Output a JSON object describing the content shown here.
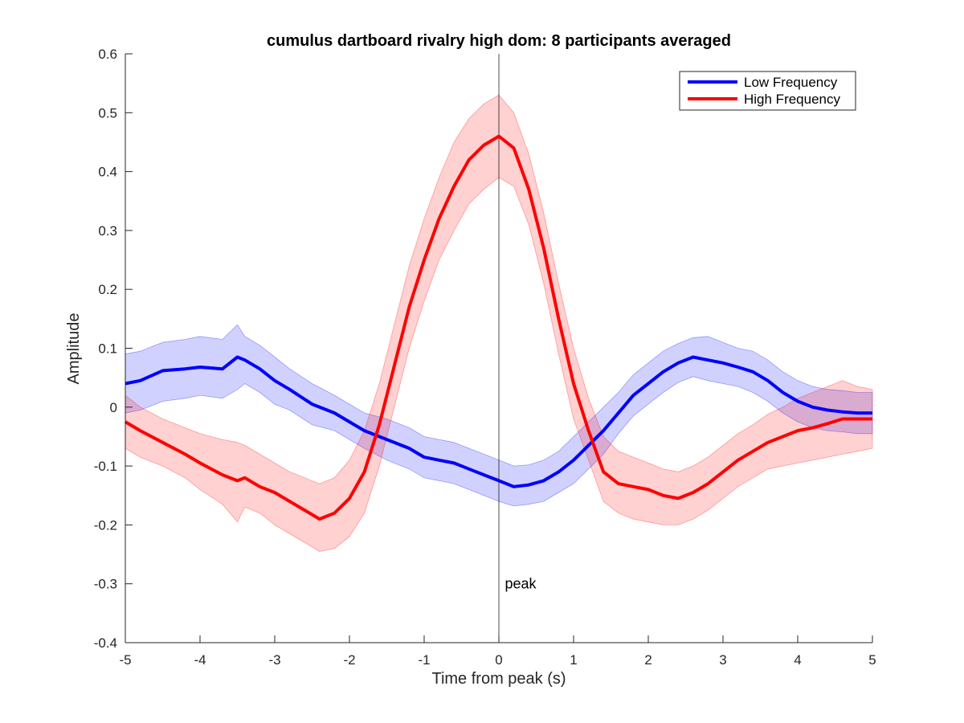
{
  "chart_data": {
    "type": "line",
    "title": "cumulus dartboard rivalry high dom: 8 participants averaged",
    "xlabel": "Time from peak (s)",
    "ylabel": "Amplitude",
    "xlim": [
      -5,
      5
    ],
    "ylim": [
      -0.4,
      0.6
    ],
    "xticks": [
      -5,
      -4,
      -3,
      -2,
      -1,
      0,
      1,
      2,
      3,
      4,
      5
    ],
    "yticks": [
      -0.4,
      -0.3,
      -0.2,
      -0.1,
      0,
      0.1,
      0.2,
      0.3,
      0.4,
      0.5,
      0.6
    ],
    "xtick_labels": [
      "-5",
      "-4",
      "-3",
      "-2",
      "-1",
      "0",
      "1",
      "2",
      "3",
      "4",
      "5"
    ],
    "ytick_labels": [
      "-0.4",
      "-0.3",
      "-0.2",
      "-0.1",
      "0",
      "0.1",
      "0.2",
      "0.3",
      "0.4",
      "0.5",
      "0.6"
    ],
    "grid": false,
    "legend_position": "top-right",
    "annotations": [
      {
        "text": "peak",
        "x": 0.08,
        "y": -0.3
      }
    ],
    "vline_x": 0,
    "series": [
      {
        "name": "Low Frequency",
        "color": "#0000ff",
        "band_color": "#0000ff",
        "x": [
          -5,
          -4.8,
          -4.5,
          -4.2,
          -4.0,
          -3.7,
          -3.5,
          -3.4,
          -3.2,
          -3.0,
          -2.8,
          -2.5,
          -2.2,
          -2.0,
          -1.8,
          -1.5,
          -1.2,
          -1.0,
          -0.8,
          -0.6,
          -0.4,
          -0.2,
          0,
          0.2,
          0.4,
          0.6,
          0.8,
          1.0,
          1.2,
          1.4,
          1.6,
          1.8,
          2.0,
          2.2,
          2.4,
          2.6,
          2.8,
          3.0,
          3.2,
          3.4,
          3.6,
          3.8,
          4.0,
          4.2,
          4.4,
          4.6,
          4.8,
          5.0
        ],
        "values": [
          0.04,
          0.045,
          0.062,
          0.065,
          0.068,
          0.065,
          0.085,
          0.08,
          0.065,
          0.045,
          0.03,
          0.005,
          -0.01,
          -0.025,
          -0.04,
          -0.055,
          -0.07,
          -0.085,
          -0.09,
          -0.095,
          -0.105,
          -0.115,
          -0.125,
          -0.135,
          -0.132,
          -0.125,
          -0.11,
          -0.09,
          -0.065,
          -0.04,
          -0.01,
          0.02,
          0.04,
          0.06,
          0.075,
          0.085,
          0.08,
          0.075,
          0.068,
          0.06,
          0.045,
          0.025,
          0.01,
          0.0,
          -0.005,
          -0.008,
          -0.01,
          -0.01
        ],
        "upper": [
          0.09,
          0.095,
          0.11,
          0.115,
          0.12,
          0.115,
          0.14,
          0.12,
          0.105,
          0.085,
          0.065,
          0.04,
          0.02,
          0.005,
          -0.01,
          -0.02,
          -0.035,
          -0.05,
          -0.055,
          -0.06,
          -0.07,
          -0.08,
          -0.09,
          -0.1,
          -0.098,
          -0.09,
          -0.075,
          -0.05,
          -0.025,
          0.0,
          0.025,
          0.055,
          0.075,
          0.095,
          0.108,
          0.118,
          0.12,
          0.11,
          0.1,
          0.095,
          0.08,
          0.06,
          0.045,
          0.035,
          0.03,
          0.028,
          0.025,
          0.025
        ],
        "lower": [
          -0.01,
          -0.005,
          0.01,
          0.015,
          0.02,
          0.015,
          0.03,
          0.04,
          0.025,
          0.005,
          -0.005,
          -0.03,
          -0.04,
          -0.055,
          -0.07,
          -0.09,
          -0.105,
          -0.12,
          -0.125,
          -0.13,
          -0.14,
          -0.15,
          -0.16,
          -0.168,
          -0.165,
          -0.16,
          -0.145,
          -0.13,
          -0.105,
          -0.08,
          -0.045,
          -0.015,
          0.005,
          0.025,
          0.042,
          0.052,
          0.045,
          0.04,
          0.035,
          0.025,
          0.01,
          -0.01,
          -0.025,
          -0.035,
          -0.04,
          -0.042,
          -0.045,
          -0.045
        ]
      },
      {
        "name": "High Frequency",
        "color": "#ff0000",
        "band_color": "#ff0000",
        "x": [
          -5,
          -4.8,
          -4.5,
          -4.2,
          -4.0,
          -3.7,
          -3.5,
          -3.4,
          -3.2,
          -3.0,
          -2.8,
          -2.6,
          -2.4,
          -2.2,
          -2.0,
          -1.8,
          -1.6,
          -1.4,
          -1.2,
          -1.0,
          -0.8,
          -0.6,
          -0.4,
          -0.2,
          0,
          0.2,
          0.4,
          0.6,
          0.8,
          1.0,
          1.2,
          1.4,
          1.6,
          1.8,
          2.0,
          2.2,
          2.4,
          2.6,
          2.8,
          3.0,
          3.2,
          3.4,
          3.6,
          3.8,
          4.0,
          4.2,
          4.4,
          4.6,
          4.8,
          5.0
        ],
        "values": [
          -0.025,
          -0.04,
          -0.06,
          -0.08,
          -0.095,
          -0.115,
          -0.125,
          -0.12,
          -0.135,
          -0.145,
          -0.16,
          -0.175,
          -0.19,
          -0.18,
          -0.155,
          -0.11,
          -0.03,
          0.07,
          0.17,
          0.25,
          0.32,
          0.375,
          0.42,
          0.445,
          0.46,
          0.44,
          0.37,
          0.27,
          0.15,
          0.04,
          -0.04,
          -0.11,
          -0.13,
          -0.135,
          -0.14,
          -0.15,
          -0.155,
          -0.145,
          -0.13,
          -0.11,
          -0.09,
          -0.075,
          -0.06,
          -0.05,
          -0.04,
          -0.035,
          -0.028,
          -0.02,
          -0.02,
          -0.02
        ],
        "upper": [
          0.02,
          0.0,
          -0.02,
          -0.035,
          -0.045,
          -0.055,
          -0.06,
          -0.065,
          -0.08,
          -0.095,
          -0.11,
          -0.12,
          -0.13,
          -0.12,
          -0.09,
          -0.04,
          0.04,
          0.14,
          0.24,
          0.32,
          0.39,
          0.45,
          0.49,
          0.515,
          0.53,
          0.5,
          0.43,
          0.33,
          0.21,
          0.1,
          0.015,
          -0.05,
          -0.075,
          -0.085,
          -0.095,
          -0.105,
          -0.11,
          -0.1,
          -0.085,
          -0.065,
          -0.045,
          -0.03,
          -0.012,
          0.0,
          0.015,
          0.025,
          0.035,
          0.045,
          0.035,
          0.03
        ],
        "lower": [
          -0.07,
          -0.085,
          -0.1,
          -0.12,
          -0.14,
          -0.165,
          -0.195,
          -0.17,
          -0.18,
          -0.2,
          -0.215,
          -0.23,
          -0.245,
          -0.24,
          -0.22,
          -0.18,
          -0.1,
          0.0,
          0.1,
          0.18,
          0.25,
          0.3,
          0.345,
          0.37,
          0.39,
          0.375,
          0.31,
          0.21,
          0.09,
          -0.02,
          -0.09,
          -0.16,
          -0.18,
          -0.19,
          -0.195,
          -0.2,
          -0.2,
          -0.19,
          -0.175,
          -0.155,
          -0.135,
          -0.12,
          -0.105,
          -0.1,
          -0.095,
          -0.09,
          -0.085,
          -0.08,
          -0.075,
          -0.07
        ]
      }
    ]
  }
}
